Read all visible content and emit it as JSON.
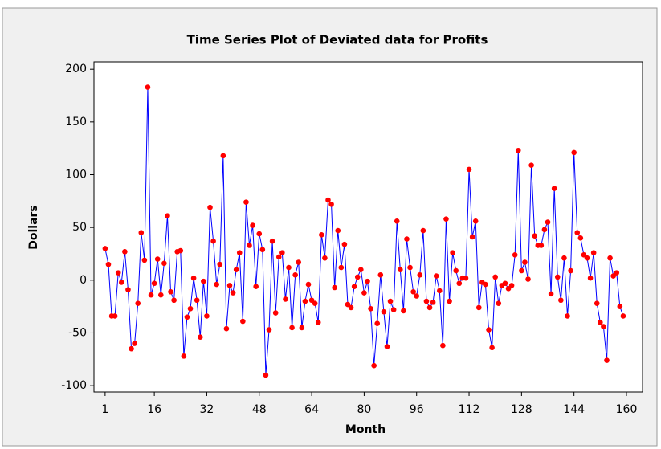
{
  "chart_data": {
    "type": "line",
    "title": "Time Series Plot of Deviated data for Profits",
    "x_label": "Month",
    "y_label": "Dollars",
    "x": [
      1,
      2,
      3,
      4,
      5,
      6,
      7,
      8,
      9,
      10,
      11,
      12,
      13,
      14,
      15,
      16,
      17,
      18,
      19,
      20,
      21,
      22,
      23,
      24,
      25,
      26,
      27,
      28,
      29,
      30,
      31,
      32,
      33,
      34,
      35,
      36,
      37,
      38,
      39,
      40,
      41,
      42,
      43,
      44,
      45,
      46,
      47,
      48,
      49,
      50,
      51,
      52,
      53,
      54,
      55,
      56,
      57,
      58,
      59,
      60,
      61,
      62,
      63,
      64,
      65,
      66,
      67,
      68,
      69,
      70,
      71,
      72,
      73,
      74,
      75,
      76,
      77,
      78,
      79,
      80,
      81,
      82,
      83,
      84,
      85,
      86,
      87,
      88,
      89,
      90,
      91,
      92,
      93,
      94,
      95,
      96,
      97,
      98,
      99,
      100,
      101,
      102,
      103,
      104,
      105,
      106,
      107,
      108,
      109,
      110,
      111,
      112,
      113,
      114,
      115,
      116,
      117,
      118,
      119,
      120,
      121,
      122,
      123,
      124,
      125,
      126,
      127,
      128,
      129,
      130,
      131,
      132,
      133,
      134,
      135,
      136,
      137,
      138,
      139,
      140,
      141,
      142,
      143,
      144,
      145,
      146,
      147,
      148,
      149,
      150,
      151,
      152,
      153,
      154,
      155,
      156,
      157,
      158,
      159
    ],
    "values": [
      30,
      15,
      -34,
      -34,
      7,
      -2,
      27,
      -9,
      -65,
      -60,
      -22,
      45,
      19,
      183,
      -14,
      -3,
      20,
      -14,
      16,
      61,
      -11,
      -19,
      27,
      28,
      -72,
      -35,
      -27,
      2,
      -19,
      -54,
      -1,
      -34,
      69,
      37,
      -4,
      15,
      118,
      -46,
      -5,
      -12,
      10,
      26,
      -39,
      74,
      33,
      52,
      -6,
      44,
      29,
      -90,
      -47,
      37,
      -31,
      22,
      26,
      -18,
      12,
      -45,
      5,
      17,
      -45,
      -20,
      -4,
      -19,
      -22,
      -40,
      43,
      21,
      76,
      72,
      -7,
      47,
      12,
      34,
      -23,
      -26,
      -6,
      3,
      10,
      -12,
      -1,
      -27,
      -81,
      -41,
      5,
      -30,
      -63,
      -20,
      -28,
      56,
      10,
      -29,
      39,
      12,
      -11,
      -15,
      5,
      47,
      -20,
      -26,
      -21,
      4,
      -10,
      -62,
      58,
      -20,
      26,
      9,
      -3,
      2,
      2,
      105,
      41,
      56,
      -26,
      -2,
      -4,
      -47,
      -64,
      3,
      -22,
      -5,
      -3,
      -8,
      -5,
      24,
      123,
      9,
      17,
      1,
      109,
      42,
      33,
      33,
      48,
      55,
      -13,
      87,
      3,
      -19,
      21,
      -34,
      9,
      121,
      45,
      40,
      24,
      21,
      2,
      26,
      -22,
      -40,
      -44,
      -76,
      21,
      4,
      7,
      -25,
      -34
    ],
    "color": "#0000ff",
    "marker_color": "#ff0000",
    "xlim": [
      -2.4,
      164.9
    ],
    "ylim": [
      -106,
      207
    ],
    "xticks": [
      1,
      16,
      32,
      48,
      64,
      80,
      96,
      112,
      128,
      144,
      160
    ],
    "yticks": [
      -100,
      -50,
      0,
      50,
      100,
      150,
      200
    ]
  }
}
